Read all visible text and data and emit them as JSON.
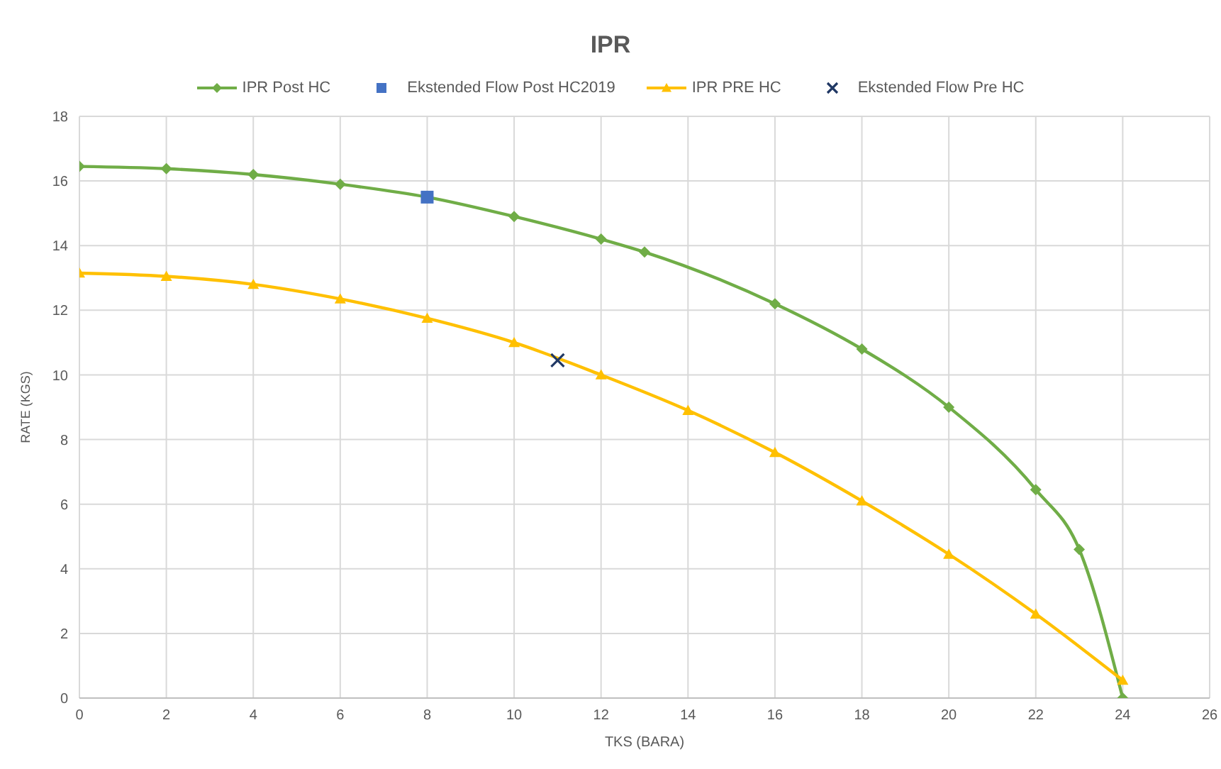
{
  "chart_data": {
    "type": "line",
    "title": "IPR",
    "xlabel": "TKS (BARA)",
    "ylabel": "RATE (KGS)",
    "xlim": [
      0,
      26
    ],
    "xticks": [
      0,
      2,
      4,
      6,
      8,
      10,
      12,
      14,
      16,
      18,
      20,
      22,
      24,
      26
    ],
    "ylim": [
      0,
      18
    ],
    "yticks": [
      0,
      2,
      4,
      6,
      8,
      10,
      12,
      14,
      16,
      18
    ],
    "grid": true,
    "legend": "top",
    "series": [
      {
        "name": "IPR Post HC",
        "marker": "diamond",
        "color": "#70ad47",
        "x": [
          0,
          2,
          4,
          6,
          8,
          10,
          12,
          13,
          16,
          18,
          20,
          22,
          23,
          24
        ],
        "values": [
          16.45,
          16.38,
          16.2,
          15.9,
          15.5,
          14.9,
          14.2,
          13.8,
          12.2,
          10.8,
          9.0,
          6.45,
          4.6,
          0
        ]
      },
      {
        "name": "Ekstended Flow Post HC2019",
        "type": "scatter",
        "marker": "square",
        "color": "#4472c4",
        "x": [
          8
        ],
        "values": [
          15.5
        ]
      },
      {
        "name": "IPR PRE HC",
        "marker": "triangle",
        "color": "#ffc000",
        "x": [
          0,
          2,
          4,
          6,
          8,
          10,
          12,
          14,
          16,
          18,
          20,
          22,
          24
        ],
        "values": [
          13.15,
          13.05,
          12.8,
          12.35,
          11.75,
          11.0,
          10.0,
          8.9,
          7.6,
          6.1,
          4.45,
          2.6,
          0.55
        ]
      },
      {
        "name": "Ekstended Flow Pre HC",
        "type": "scatter",
        "marker": "cross",
        "color": "#203864",
        "x": [
          11
        ],
        "values": [
          10.45
        ]
      }
    ]
  }
}
